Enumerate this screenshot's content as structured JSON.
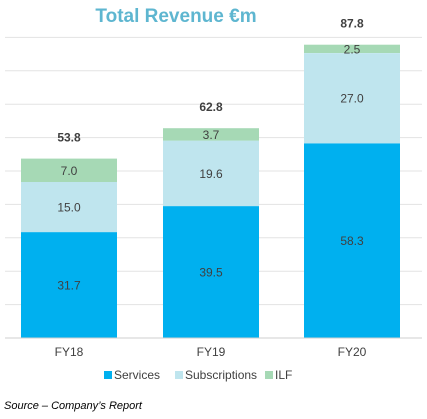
{
  "colors": {
    "title": "#5EB6D0",
    "grid": "#E3E3E3",
    "axis": "#CFCFCF",
    "text": "#404040",
    "total_text": "#404040",
    "segment_label_dark": "#404040"
  },
  "chart_data": {
    "type": "bar",
    "stacked": true,
    "title": "Total Revenue €m",
    "categories": [
      "FY18",
      "FY19",
      "FY20"
    ],
    "series": [
      {
        "name": "Services",
        "values": [
          31.7,
          39.5,
          58.3
        ],
        "color": "#00B0EF"
      },
      {
        "name": "Subscriptions",
        "values": [
          15.0,
          19.6,
          27.0
        ],
        "color": "#BFE5EE"
      },
      {
        "name": "ILF",
        "values": [
          7.0,
          3.7,
          2.5
        ],
        "color": "#A6D9B5"
      }
    ],
    "series_labels": [
      [
        "31.7",
        "39.5",
        "58.3"
      ],
      [
        "15.0",
        "19.6",
        "27.0"
      ],
      [
        "7.0",
        "3.7",
        "2.5"
      ]
    ],
    "totals": [
      "53.8",
      "62.8",
      "87.8"
    ],
    "ylim": [
      0,
      90
    ],
    "grid": true,
    "legend_position": "bottom"
  },
  "source_note": "Source – Company’s Report"
}
